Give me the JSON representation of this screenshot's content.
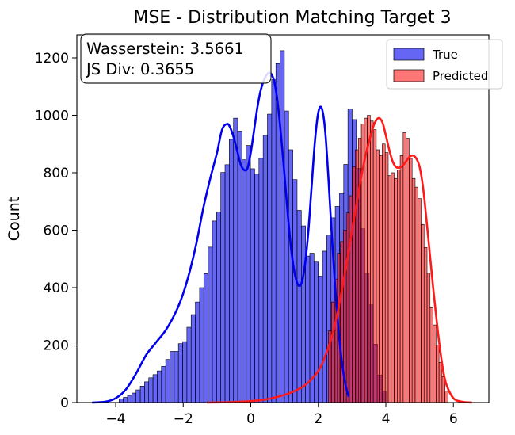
{
  "chart_data": {
    "type": "histogram",
    "title": "MSE - Distribution Matching Target 3",
    "xlabel": "",
    "ylabel": "Count",
    "xlim": [
      -5.15,
      7.05
    ],
    "ylim": [
      0,
      1280
    ],
    "xticks": [
      -4,
      -2,
      0,
      2,
      4,
      6
    ],
    "yticks": [
      0,
      200,
      400,
      600,
      800,
      1000,
      1200
    ],
    "grid": false,
    "legend_position": "top-right",
    "annotation": {
      "line1": "Wasserstein: 3.5661",
      "line2": "JS Div: 0.3655"
    },
    "series": [
      {
        "name": "True",
        "color": "#0000ee",
        "bin_start": -3.9,
        "bin_width": 0.1255,
        "counts": [
          12,
          18,
          25,
          33,
          44,
          57,
          72,
          86,
          97,
          110,
          126,
          150,
          178,
          178,
          205,
          212,
          262,
          306,
          350,
          400,
          449,
          541,
          632,
          663,
          801,
          828,
          916,
          990,
          945,
          845,
          895,
          814,
          795,
          850,
          930,
          1004,
          1124,
          1180,
          1225,
          1015,
          880,
          776,
          669,
          615,
          510,
          520,
          489,
          440,
          527,
          583,
          643,
          683,
          728,
          829,
          1022,
          985,
          815,
          605,
          450,
          340,
          203,
          96,
          40
        ],
        "kde": {
          "x": [
            -4.7,
            -4.3,
            -4.0,
            -3.7,
            -3.4,
            -3.1,
            -2.8,
            -2.5,
            -2.2,
            -2.0,
            -1.8,
            -1.6,
            -1.4,
            -1.2,
            -1.0,
            -0.85,
            -0.7,
            -0.6,
            -0.5,
            -0.4,
            -0.3,
            -0.2,
            -0.1,
            0.0,
            0.1,
            0.2,
            0.3,
            0.4,
            0.5,
            0.6,
            0.7,
            0.8,
            0.9,
            1.0,
            1.1,
            1.2,
            1.3,
            1.4,
            1.5,
            1.6,
            1.7,
            1.8,
            1.9,
            2.0,
            2.1,
            2.2,
            2.3,
            2.4,
            2.5,
            2.6,
            2.7,
            2.8,
            2.9
          ],
          "y": [
            0,
            3,
            15,
            45,
            100,
            165,
            210,
            255,
            320,
            380,
            460,
            560,
            680,
            780,
            870,
            950,
            970,
            955,
            920,
            875,
            830,
            810,
            815,
            870,
            950,
            1030,
            1090,
            1125,
            1145,
            1145,
            1115,
            1040,
            925,
            790,
            650,
            530,
            450,
            410,
            415,
            475,
            590,
            750,
            910,
            1010,
            1025,
            950,
            780,
            580,
            400,
            250,
            140,
            65,
            20
          ]
        }
      },
      {
        "name": "Predicted",
        "color": "#ff1a1a",
        "bin_start": 2.3,
        "bin_width": 0.0885,
        "counts": [
          250,
          350,
          430,
          520,
          560,
          600,
          660,
          720,
          820,
          880,
          920,
          970,
          990,
          1000,
          980,
          950,
          880,
          860,
          900,
          870,
          790,
          800,
          780,
          810,
          860,
          940,
          920,
          850,
          780,
          750,
          710,
          620,
          540,
          450,
          330,
          270,
          200,
          140,
          90,
          40
        ],
        "kde": {
          "x": [
            -1.3,
            -0.5,
            0.0,
            0.4,
            0.8,
            1.2,
            1.6,
            2.0,
            2.2,
            2.4,
            2.6,
            2.8,
            3.0,
            3.2,
            3.4,
            3.6,
            3.7,
            3.8,
            3.9,
            4.0,
            4.1,
            4.2,
            4.3,
            4.4,
            4.5,
            4.6,
            4.7,
            4.8,
            4.9,
            5.0,
            5.1,
            5.2,
            5.3,
            5.4,
            5.5,
            5.6,
            5.7,
            5.8,
            6.0,
            6.2,
            6.4,
            6.55
          ],
          "y": [
            0,
            2,
            5,
            10,
            20,
            35,
            60,
            110,
            160,
            230,
            330,
            460,
            600,
            740,
            860,
            950,
            980,
            990,
            975,
            930,
            880,
            840,
            820,
            818,
            825,
            840,
            855,
            860,
            850,
            820,
            750,
            640,
            520,
            400,
            290,
            190,
            110,
            60,
            15,
            4,
            1,
            0
          ]
        }
      }
    ]
  }
}
